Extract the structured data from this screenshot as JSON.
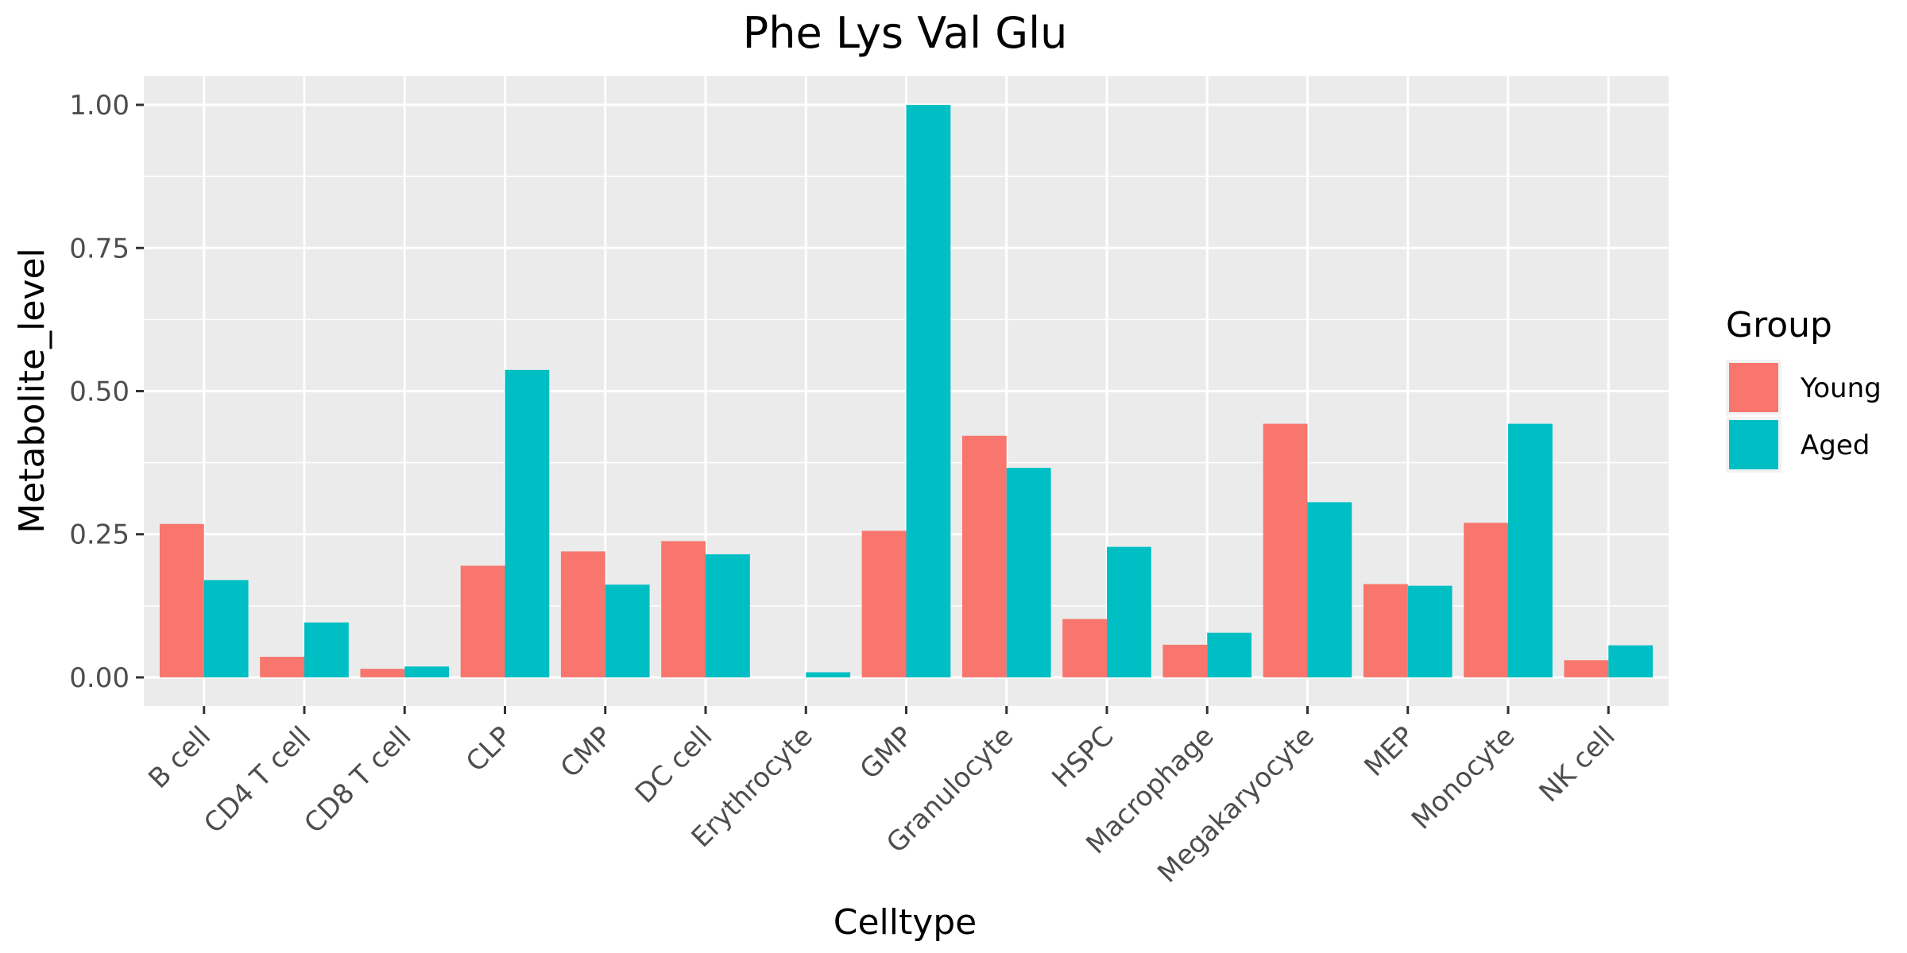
{
  "chart_data": {
    "type": "bar",
    "title": "Phe Lys Val Glu",
    "xlabel": "Celltype",
    "ylabel": "Metabolite_level",
    "ylim": [
      -0.05,
      1.05
    ],
    "yticks": [
      "0.00",
      "0.25",
      "0.50",
      "0.75",
      "1.00"
    ],
    "ytick_values": [
      0,
      0.25,
      0.5,
      0.75,
      1.0
    ],
    "categories": [
      "B cell",
      "CD4 T cell",
      "CD8 T cell",
      "CLP",
      "CMP",
      "DC cell",
      "Erythrocyte",
      "GMP",
      "Granulocyte",
      "HSPC",
      "Macrophage",
      "Megakaryocyte",
      "MEP",
      "Monocyte",
      "NK cell"
    ],
    "legend_title": "Group",
    "legend_position": "right",
    "grid": true,
    "series": [
      {
        "name": "Young",
        "color": "#F8766D",
        "values": [
          0.268,
          0.036,
          0.015,
          0.195,
          0.22,
          0.238,
          0.0,
          0.256,
          0.422,
          0.102,
          0.057,
          0.443,
          0.163,
          0.27,
          0.03
        ]
      },
      {
        "name": "Aged",
        "color": "#00BFC4",
        "values": [
          0.17,
          0.096,
          0.019,
          0.537,
          0.162,
          0.215,
          0.009,
          1.0,
          0.366,
          0.228,
          0.078,
          0.306,
          0.16,
          0.443,
          0.056
        ]
      }
    ]
  }
}
